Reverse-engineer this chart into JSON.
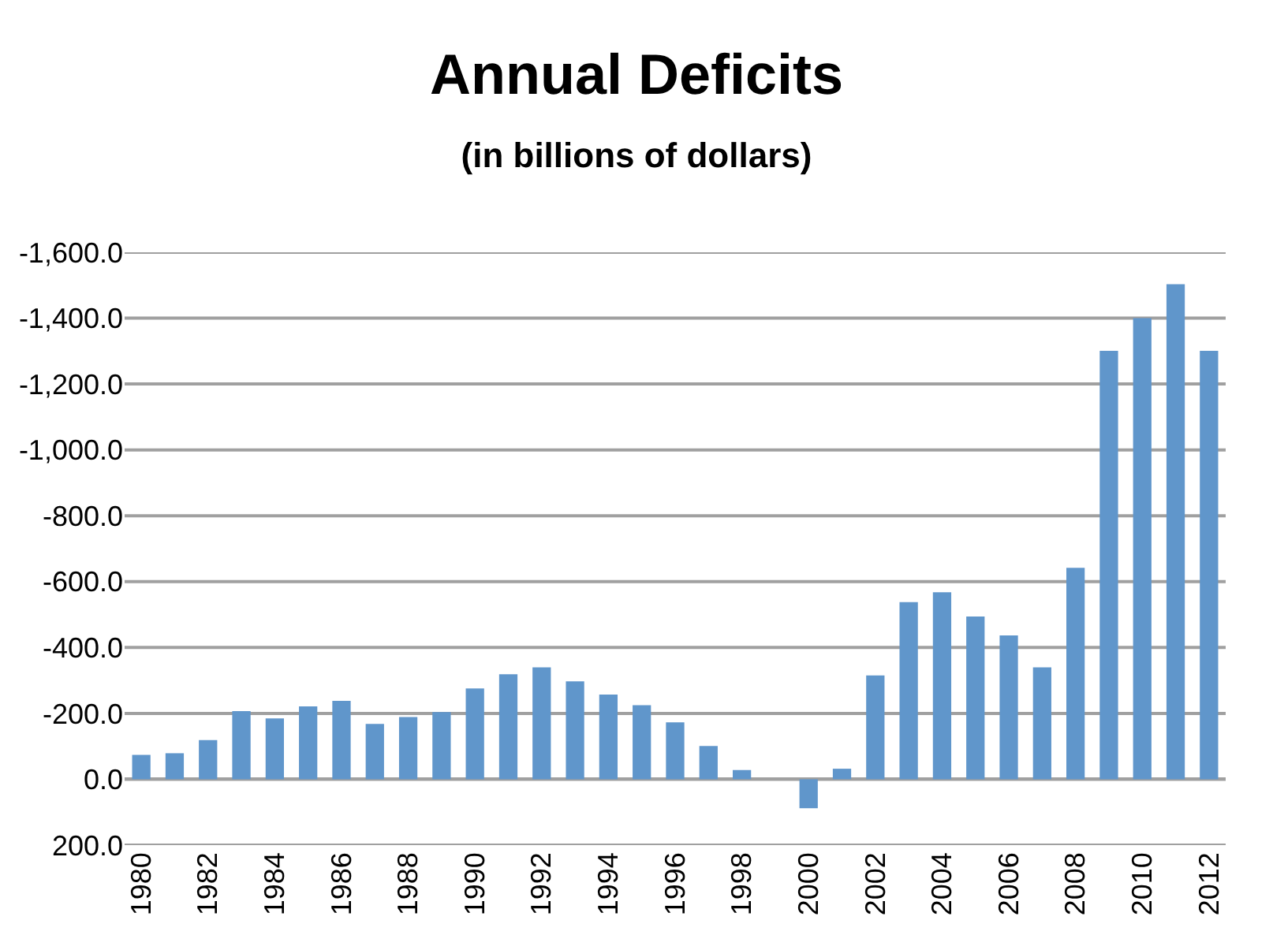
{
  "chart_data": {
    "type": "bar",
    "title": "Annual Deficits",
    "subtitle": "(in billions of dollars)",
    "categories": [
      "1980",
      null,
      "1982",
      null,
      "1984",
      null,
      "1986",
      null,
      "1988",
      null,
      "1990",
      null,
      "1992",
      null,
      "1994",
      null,
      "1996",
      null,
      "1998",
      null,
      "2000",
      null,
      "2002",
      null,
      "2004",
      null,
      "2006",
      null,
      "2008",
      null,
      "2010",
      null,
      "2012"
    ],
    "values": [
      -74,
      -79,
      -119,
      -207,
      -185,
      -221,
      -238,
      -168,
      -189,
      -204,
      -276,
      -319,
      -340,
      -297,
      -257,
      -225,
      -173,
      -101,
      -28,
      0,
      88,
      -32,
      -315,
      -538,
      -568,
      -494,
      -437,
      -340,
      -642,
      -1301,
      -1400,
      -1503,
      -1301
    ],
    "color": "#6096cb",
    "ylim": [
      200,
      -1600
    ],
    "yticks": [
      {
        "value": -1600,
        "label": "-1,600.0"
      },
      {
        "value": -1400,
        "label": "-1,400.0"
      },
      {
        "value": -1200,
        "label": "-1,200.0"
      },
      {
        "value": -1000,
        "label": "-1,000.0"
      },
      {
        "value": -800,
        "label": "-800.0"
      },
      {
        "value": -600,
        "label": "-600.0"
      },
      {
        "value": -400,
        "label": "-400.0"
      },
      {
        "value": -200,
        "label": "-200.0"
      },
      {
        "value": 0,
        "label": "0.0"
      },
      {
        "value": 200,
        "label": "200.0"
      }
    ],
    "grid": "y"
  }
}
